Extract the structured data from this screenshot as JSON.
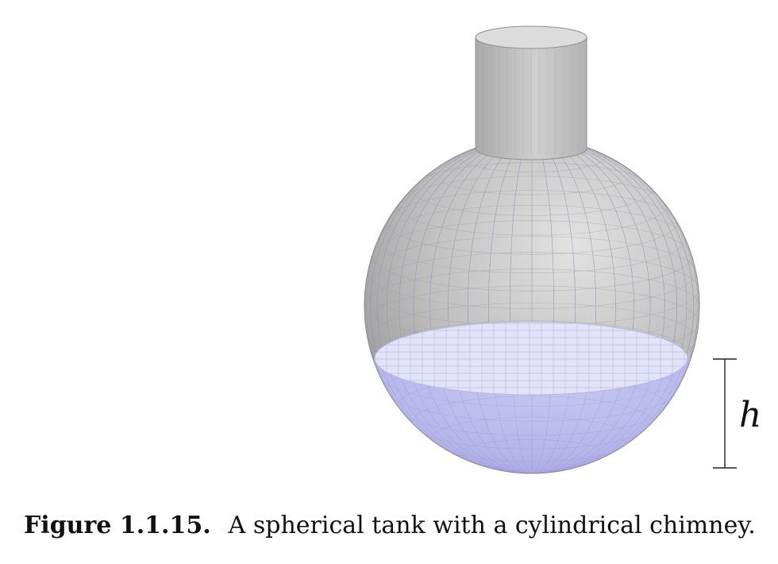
{
  "figure": {
    "height_label": "h",
    "caption_label": "Figure 1.1.15.",
    "caption_text": "A spherical tank with a cylindrical chimney."
  },
  "colors": {
    "shell_light": "#d7d7d7",
    "shell_mid": "#b4b4b4",
    "shell_dark": "#8a8a8a",
    "liquid_surface": "#e3e3fb",
    "liquid_body": "#b9b9ec",
    "liquid_body_dark": "#9c9cd8",
    "grid_line": "#a9a9a9"
  }
}
